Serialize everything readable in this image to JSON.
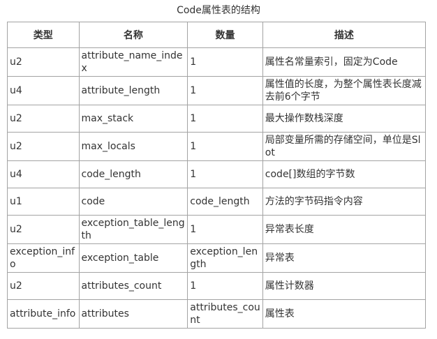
{
  "page": {
    "title": "Code属性表的结构"
  },
  "table": {
    "headers": [
      "类型",
      "名称",
      "数量",
      "描述"
    ],
    "rows": [
      [
        "u2",
        "attribute_name_index",
        "1",
        "属性名常量索引，固定为Code"
      ],
      [
        "u4",
        "attribute_length",
        "1",
        "属性值的长度，为整个属性表长度减去前6个字节"
      ],
      [
        "u2",
        "max_stack",
        "1",
        "最大操作数栈深度"
      ],
      [
        "u2",
        "max_locals",
        "1",
        "局部变量所需的存储空间，单位是Slot"
      ],
      [
        "u4",
        "code_length",
        "1",
        "code[]数组的字节数"
      ],
      [
        "u1",
        "code",
        "code_length",
        "方法的字节码指令内容"
      ],
      [
        "u2",
        "exception_table_length",
        "1",
        "异常表长度"
      ],
      [
        "exception_info",
        "exception_table",
        "exception_length",
        "异常表"
      ],
      [
        "u2",
        "attributes_count",
        "1",
        "属性计数器"
      ],
      [
        "attribute_info",
        "attributes",
        "attributes_count",
        "属性表"
      ]
    ],
    "colors": {
      "border": "#a3a3a3",
      "text": "#333333",
      "background": "#ffffff"
    }
  }
}
